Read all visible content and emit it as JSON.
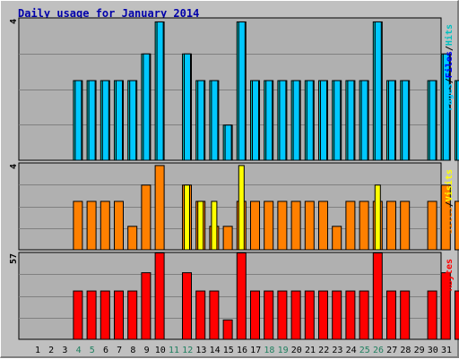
{
  "title": "Daily usage for January 2014",
  "colors": {
    "background": "#c0c0c0",
    "plot_background": "#b0b0b0",
    "grid": "#808080",
    "hits": "#00c0c0",
    "files": "#0000ff",
    "pages": "#00c8ff",
    "visits": "#ffff00",
    "sites": "#ff8000",
    "kbytes": "#ff0000",
    "weekend_label": "#208060",
    "weekday_label": "#000000"
  },
  "chart_data": {
    "type": "bar",
    "title": "Daily usage for January 2014",
    "categories": [
      "1",
      "2",
      "3",
      "4",
      "5",
      "6",
      "7",
      "8",
      "9",
      "10",
      "11",
      "12",
      "13",
      "14",
      "15",
      "16",
      "17",
      "18",
      "19",
      "20",
      "21",
      "22",
      "23",
      "24",
      "25",
      "26",
      "27",
      "28",
      "29",
      "30",
      "31"
    ],
    "weekend_days": [
      "4",
      "5",
      "11",
      "12",
      "18",
      "19",
      "25",
      "26"
    ],
    "panels": [
      {
        "axis_max_label": "4",
        "legend": [
          {
            "name": "Pages",
            "color": "#00c8ff"
          },
          {
            "name": "Files",
            "color": "#0000ff"
          },
          {
            "name": "Hits",
            "color": "#00c0c0"
          }
        ],
        "series": [
          {
            "name": "Hits",
            "values": [
              0,
              0,
              2.25,
              2.25,
              2.25,
              2.25,
              2.25,
              3,
              3.9,
              0,
              3,
              2.25,
              2.25,
              1,
              3.9,
              2.25,
              2.25,
              2.25,
              2.25,
              2.25,
              2.25,
              2.25,
              2.25,
              2.25,
              3.9,
              2.25,
              2.25,
              0,
              2.25,
              3,
              2.25
            ]
          },
          {
            "name": "Pages",
            "values": [
              0,
              0,
              2.25,
              2.25,
              2.25,
              2.25,
              2.25,
              3,
              3.9,
              0,
              3,
              2.25,
              2.25,
              1,
              3.9,
              2.25,
              2.25,
              2.25,
              2.25,
              2.25,
              2.25,
              2.25,
              2.25,
              2.25,
              3.9,
              2.25,
              2.25,
              0,
              2.25,
              3,
              2.25
            ]
          }
        ]
      },
      {
        "axis_max_label": "4",
        "legend": [
          {
            "name": "Sites",
            "color": "#ff8000"
          },
          {
            "name": "Visits",
            "color": "#ffff00"
          }
        ],
        "series": [
          {
            "name": "Sites",
            "values": [
              0,
              0,
              2.25,
              2.25,
              2.25,
              2.25,
              1.1,
              3,
              3.9,
              0,
              3,
              2.25,
              1.1,
              1.1,
              2.25,
              2.25,
              2.25,
              2.25,
              2.25,
              2.25,
              2.25,
              1.1,
              2.25,
              2.25,
              2.25,
              2.25,
              2.25,
              0,
              2.25,
              3,
              2.25
            ]
          },
          {
            "name": "Visits",
            "values": [
              0,
              0,
              0,
              0,
              0,
              0,
              0,
              0,
              0,
              0,
              3,
              2.25,
              2.25,
              0,
              3.9,
              0,
              0,
              0,
              0,
              0,
              0,
              0,
              0,
              0,
              3,
              0,
              0,
              0,
              0,
              0,
              0
            ]
          }
        ]
      },
      {
        "axis_max_label": "57",
        "legend": [
          {
            "name": "KBytes",
            "color": "#ff0000"
          }
        ],
        "series": [
          {
            "name": "KBytes",
            "values": [
              0,
              0,
              32,
              32,
              32,
              32,
              32,
              44,
              57,
              0,
              44,
              32,
              32,
              13,
              57,
              32,
              32,
              32,
              32,
              32,
              32,
              32,
              32,
              32,
              57,
              32,
              32,
              0,
              32,
              44,
              32
            ]
          }
        ]
      }
    ]
  }
}
